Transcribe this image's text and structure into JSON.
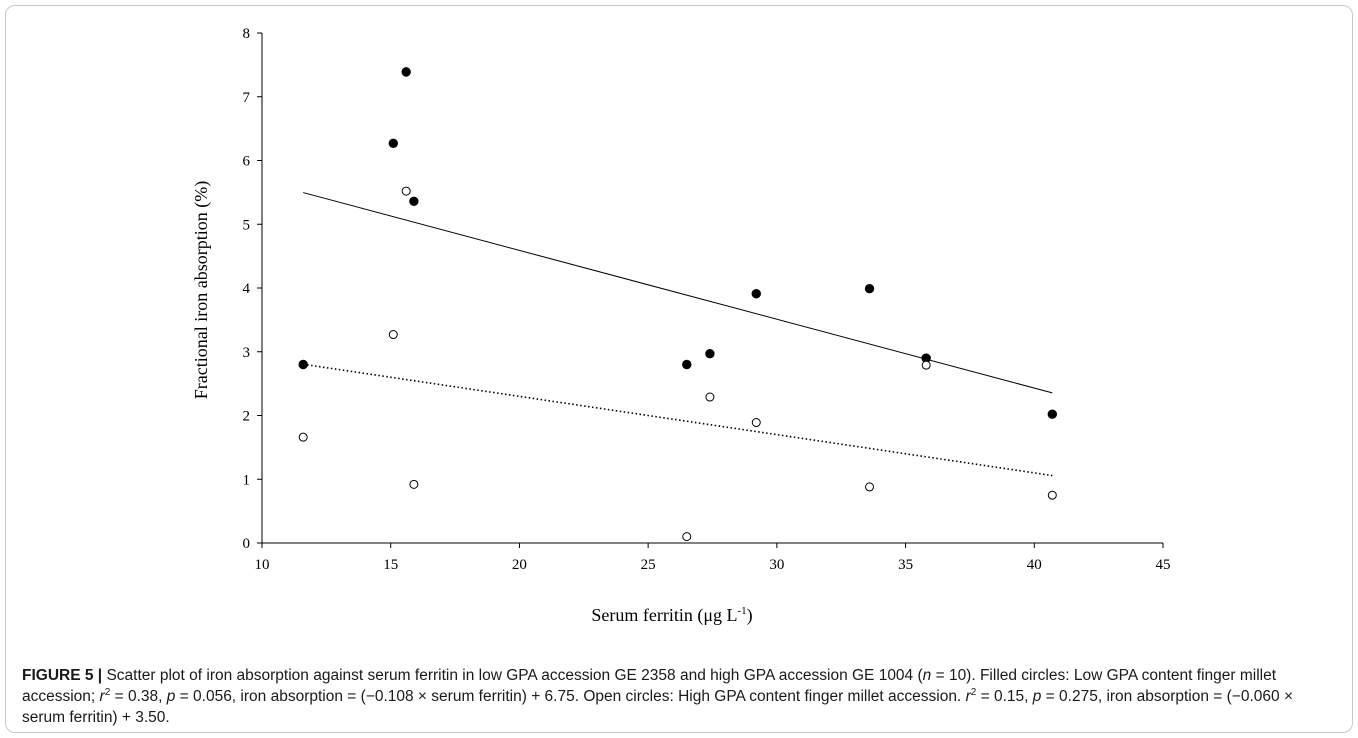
{
  "chart_data": {
    "type": "scatter",
    "xlabel": "Serum ferritin (μg L",
    "xlabel_superscript": "-1",
    "xlabel_suffix": ")",
    "ylabel": "Fractional iron absorption (%)",
    "xlim": [
      10,
      45
    ],
    "ylim": [
      0,
      8
    ],
    "x_ticks": [
      10,
      15,
      20,
      25,
      30,
      35,
      40,
      45
    ],
    "y_ticks": [
      0,
      1,
      2,
      3,
      4,
      5,
      6,
      7,
      8
    ],
    "grid": false,
    "series": [
      {
        "marker": "filled",
        "color": "#000000",
        "points": [
          [
            11.6,
            2.8
          ],
          [
            15.1,
            6.27
          ],
          [
            15.6,
            7.39
          ],
          [
            15.9,
            5.36
          ],
          [
            26.5,
            2.8
          ],
          [
            27.4,
            2.97
          ],
          [
            29.2,
            3.91
          ],
          [
            33.6,
            3.99
          ],
          [
            35.8,
            2.9
          ],
          [
            40.7,
            2.02
          ]
        ],
        "trendline": {
          "style": "solid",
          "slope": -0.108,
          "intercept": 6.75,
          "x_range": [
            11.6,
            40.7
          ]
        }
      },
      {
        "marker": "open",
        "color": "#000000",
        "points": [
          [
            11.6,
            1.66
          ],
          [
            15.1,
            3.27
          ],
          [
            15.6,
            5.52
          ],
          [
            15.9,
            0.92
          ],
          [
            26.5,
            0.1
          ],
          [
            27.4,
            2.29
          ],
          [
            29.2,
            1.89
          ],
          [
            33.6,
            0.88
          ],
          [
            35.8,
            2.79
          ],
          [
            40.7,
            0.75
          ]
        ],
        "trendline": {
          "style": "dotted",
          "slope": -0.06,
          "intercept": 3.5,
          "x_range": [
            11.6,
            40.7
          ]
        }
      }
    ]
  },
  "caption": {
    "label": "FIGURE 5 |",
    "p1": " Scatter plot of iron absorption against serum ferritin in low GPA accession GE 2358 and high GPA accession GE 1004 (",
    "n": "n",
    "p2": " = 10). Filled circles: Low GPA content finger millet accession; ",
    "r1": "r",
    "sup1": "2",
    "p3": " = 0.38, ",
    "pv1": "p",
    "p4": " = 0.056, iron absorption = (−0.108 × serum ferritin) + 6.75. Open circles: High GPA content finger millet accession. ",
    "r2": "r",
    "sup2": "2",
    "p5": " = 0.15, ",
    "pv2": "p",
    "p6": " = 0.275, iron absorption = (−0.060 × serum ferritin) + 3.50."
  }
}
